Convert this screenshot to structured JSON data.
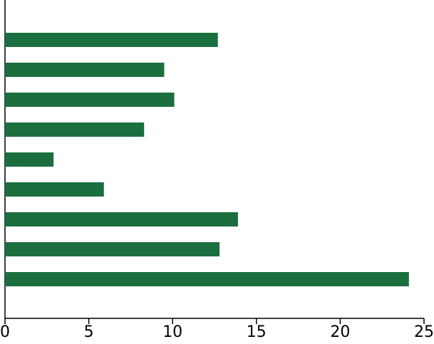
{
  "chart_data": {
    "type": "barh",
    "categories": [
      null,
      null,
      null,
      null,
      null,
      null,
      null,
      null,
      null
    ],
    "values": [
      12.7,
      9.5,
      10.1,
      8.3,
      2.9,
      5.9,
      13.9,
      12.8,
      24.1
    ],
    "color": "#1b6e3e",
    "xlim": [
      0,
      25
    ],
    "xticks": [
      0,
      5,
      10,
      15,
      20,
      25
    ],
    "grid": false
  }
}
